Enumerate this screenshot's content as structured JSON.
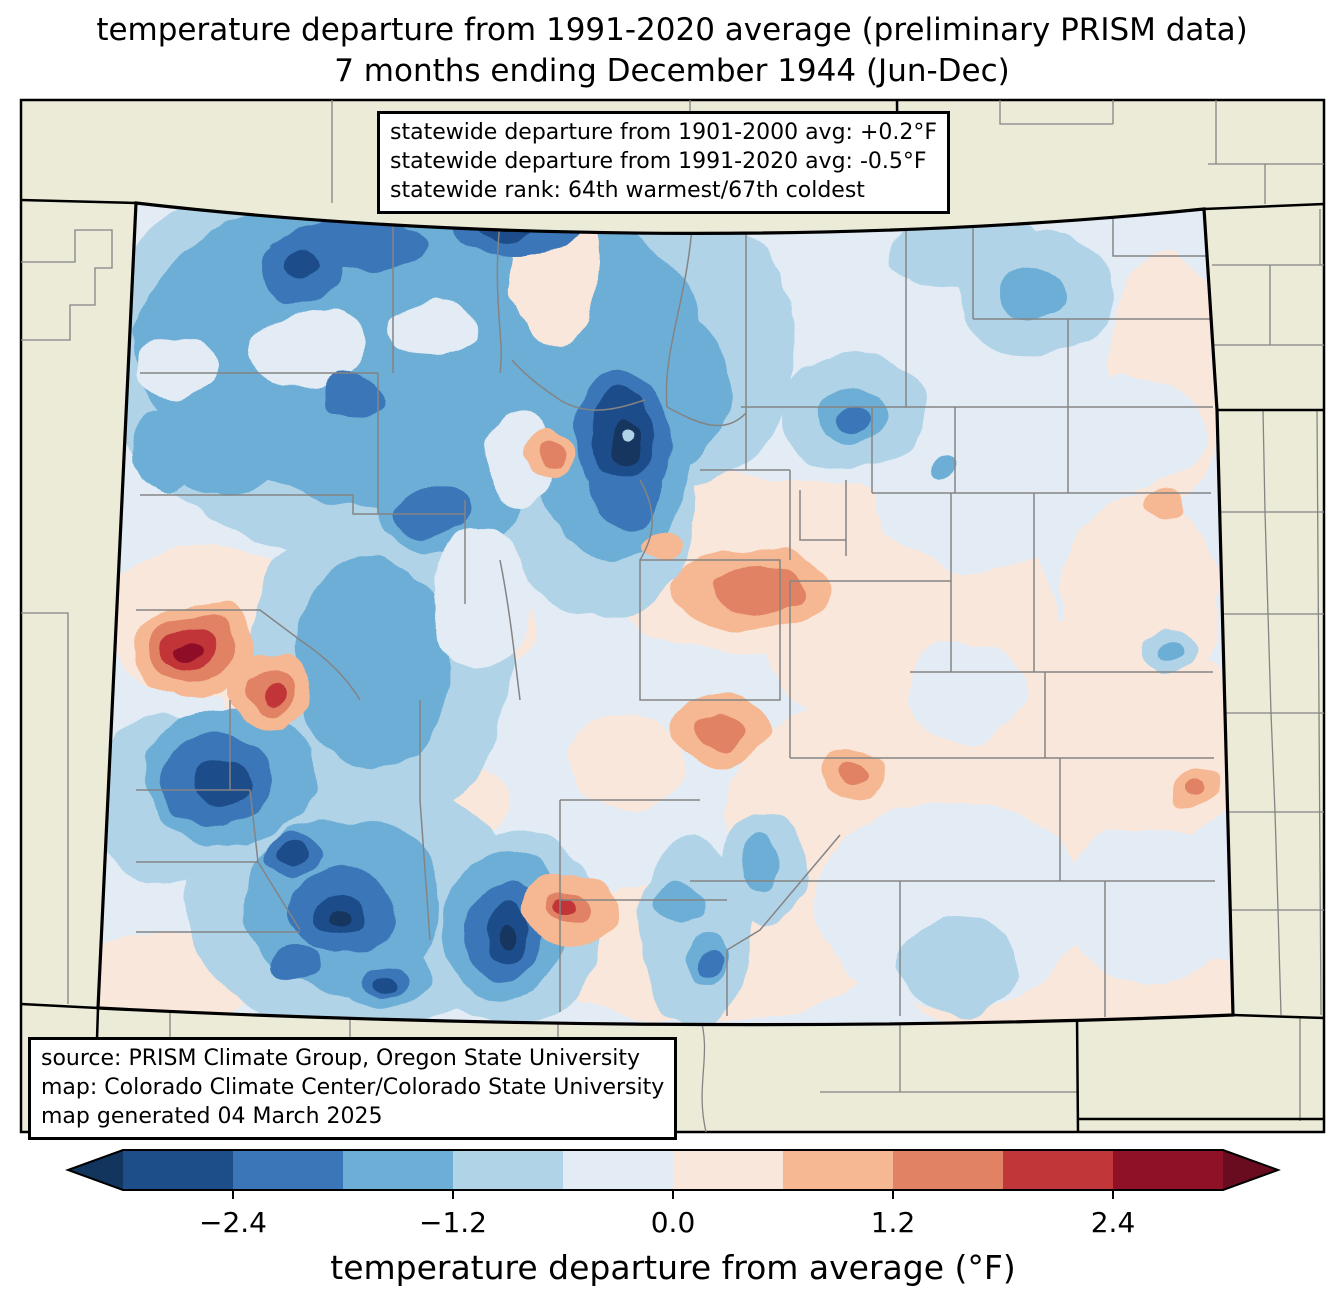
{
  "figure": {
    "title_line1": "temperature departure from 1991-2020 average (preliminary PRISM data)",
    "title_line2": "7 months ending December 1944 (Jun-Dec)"
  },
  "stats_box": {
    "lines": [
      "statewide departure from 1901-2000 avg: +0.2°F",
      "statewide departure from 1991-2020 avg: -0.5°F",
      "statewide rank: 64th warmest/67th coldest"
    ]
  },
  "source_box": {
    "lines": [
      "source: PRISM Climate Group, Oregon State University",
      "map: Colorado Climate Center/Colorado State University",
      "map generated 04 March 2025"
    ]
  },
  "colorbar": {
    "label": "temperature departure from average (°F)",
    "range_f": [
      -3.0,
      3.0
    ],
    "tick_labels": [
      "−2.4",
      "−1.2",
      "0.0",
      "1.2",
      "2.4"
    ],
    "tick_values": [
      -2.4,
      -1.2,
      0.0,
      1.2,
      2.4
    ],
    "tick_positions_pct": [
      10,
      30,
      50,
      70,
      90
    ],
    "segment_colors": [
      "#1d4e8a",
      "#3a76b8",
      "#6caed6",
      "#b0d3e7",
      "#e3ecf5",
      "#fae7dc",
      "#f6b893",
      "#e08263",
      "#c13639",
      "#8f1127"
    ],
    "under_arrow_color": "#12355e",
    "over_arrow_color": "#690c20"
  },
  "map": {
    "region": "Colorado",
    "surround_fill": "#ecebd8",
    "state_border_color": "#000000",
    "county_line_color": "#848484",
    "field_base_color": "#e3ecf5",
    "pattern_summary": "cold (blue) anomalies over western/central mountains, warm (red) spots near west-central border, mild warm (pink) anomalies over eastern plains"
  }
}
